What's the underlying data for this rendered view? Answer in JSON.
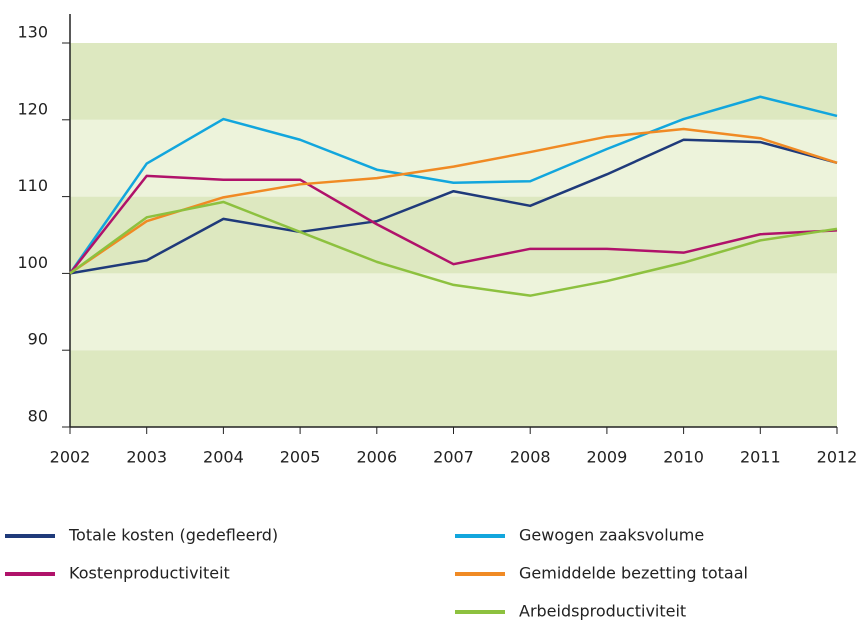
{
  "chart_data": {
    "type": "line",
    "x": [
      2002,
      2003,
      2004,
      2005,
      2006,
      2007,
      2008,
      2009,
      2010,
      2011,
      2012
    ],
    "xlim": [
      2002,
      2012
    ],
    "xticks": [
      2002,
      2003,
      2004,
      2005,
      2006,
      2007,
      2008,
      2009,
      2010,
      2011,
      2012
    ],
    "ylim": [
      80,
      130
    ],
    "yticks": [
      80,
      90,
      100,
      110,
      120,
      130
    ],
    "series": [
      {
        "name": "Totale kosten (gedefleerd)",
        "color": "#1f3a7a",
        "values": [
          100,
          101.7,
          107.1,
          105.4,
          106.8,
          110.7,
          108.8,
          112.9,
          117.4,
          117.1,
          114.4
        ]
      },
      {
        "name": "Gewogen zaaksvolume",
        "color": "#12a6dd",
        "values": [
          100,
          114.3,
          120.1,
          117.4,
          113.5,
          111.8,
          112.0,
          116.2,
          120.1,
          123.0,
          120.5
        ]
      },
      {
        "name": "Kostenproductiviteit",
        "color": "#b0126a",
        "values": [
          100,
          112.7,
          112.2,
          112.2,
          106.4,
          101.2,
          103.2,
          103.2,
          102.7,
          105.1,
          105.6
        ]
      },
      {
        "name": "Gemiddelde bezetting totaal",
        "color": "#f08a24",
        "values": [
          100,
          106.8,
          109.9,
          111.6,
          112.4,
          113.9,
          115.8,
          117.8,
          118.8,
          117.6,
          114.4
        ]
      },
      {
        "name": "Arbeidsproductiviteit",
        "color": "#8dc13f",
        "values": [
          100,
          107.3,
          109.3,
          105.4,
          101.5,
          98.5,
          97.1,
          99.0,
          101.4,
          104.3,
          105.8
        ]
      }
    ]
  }
}
